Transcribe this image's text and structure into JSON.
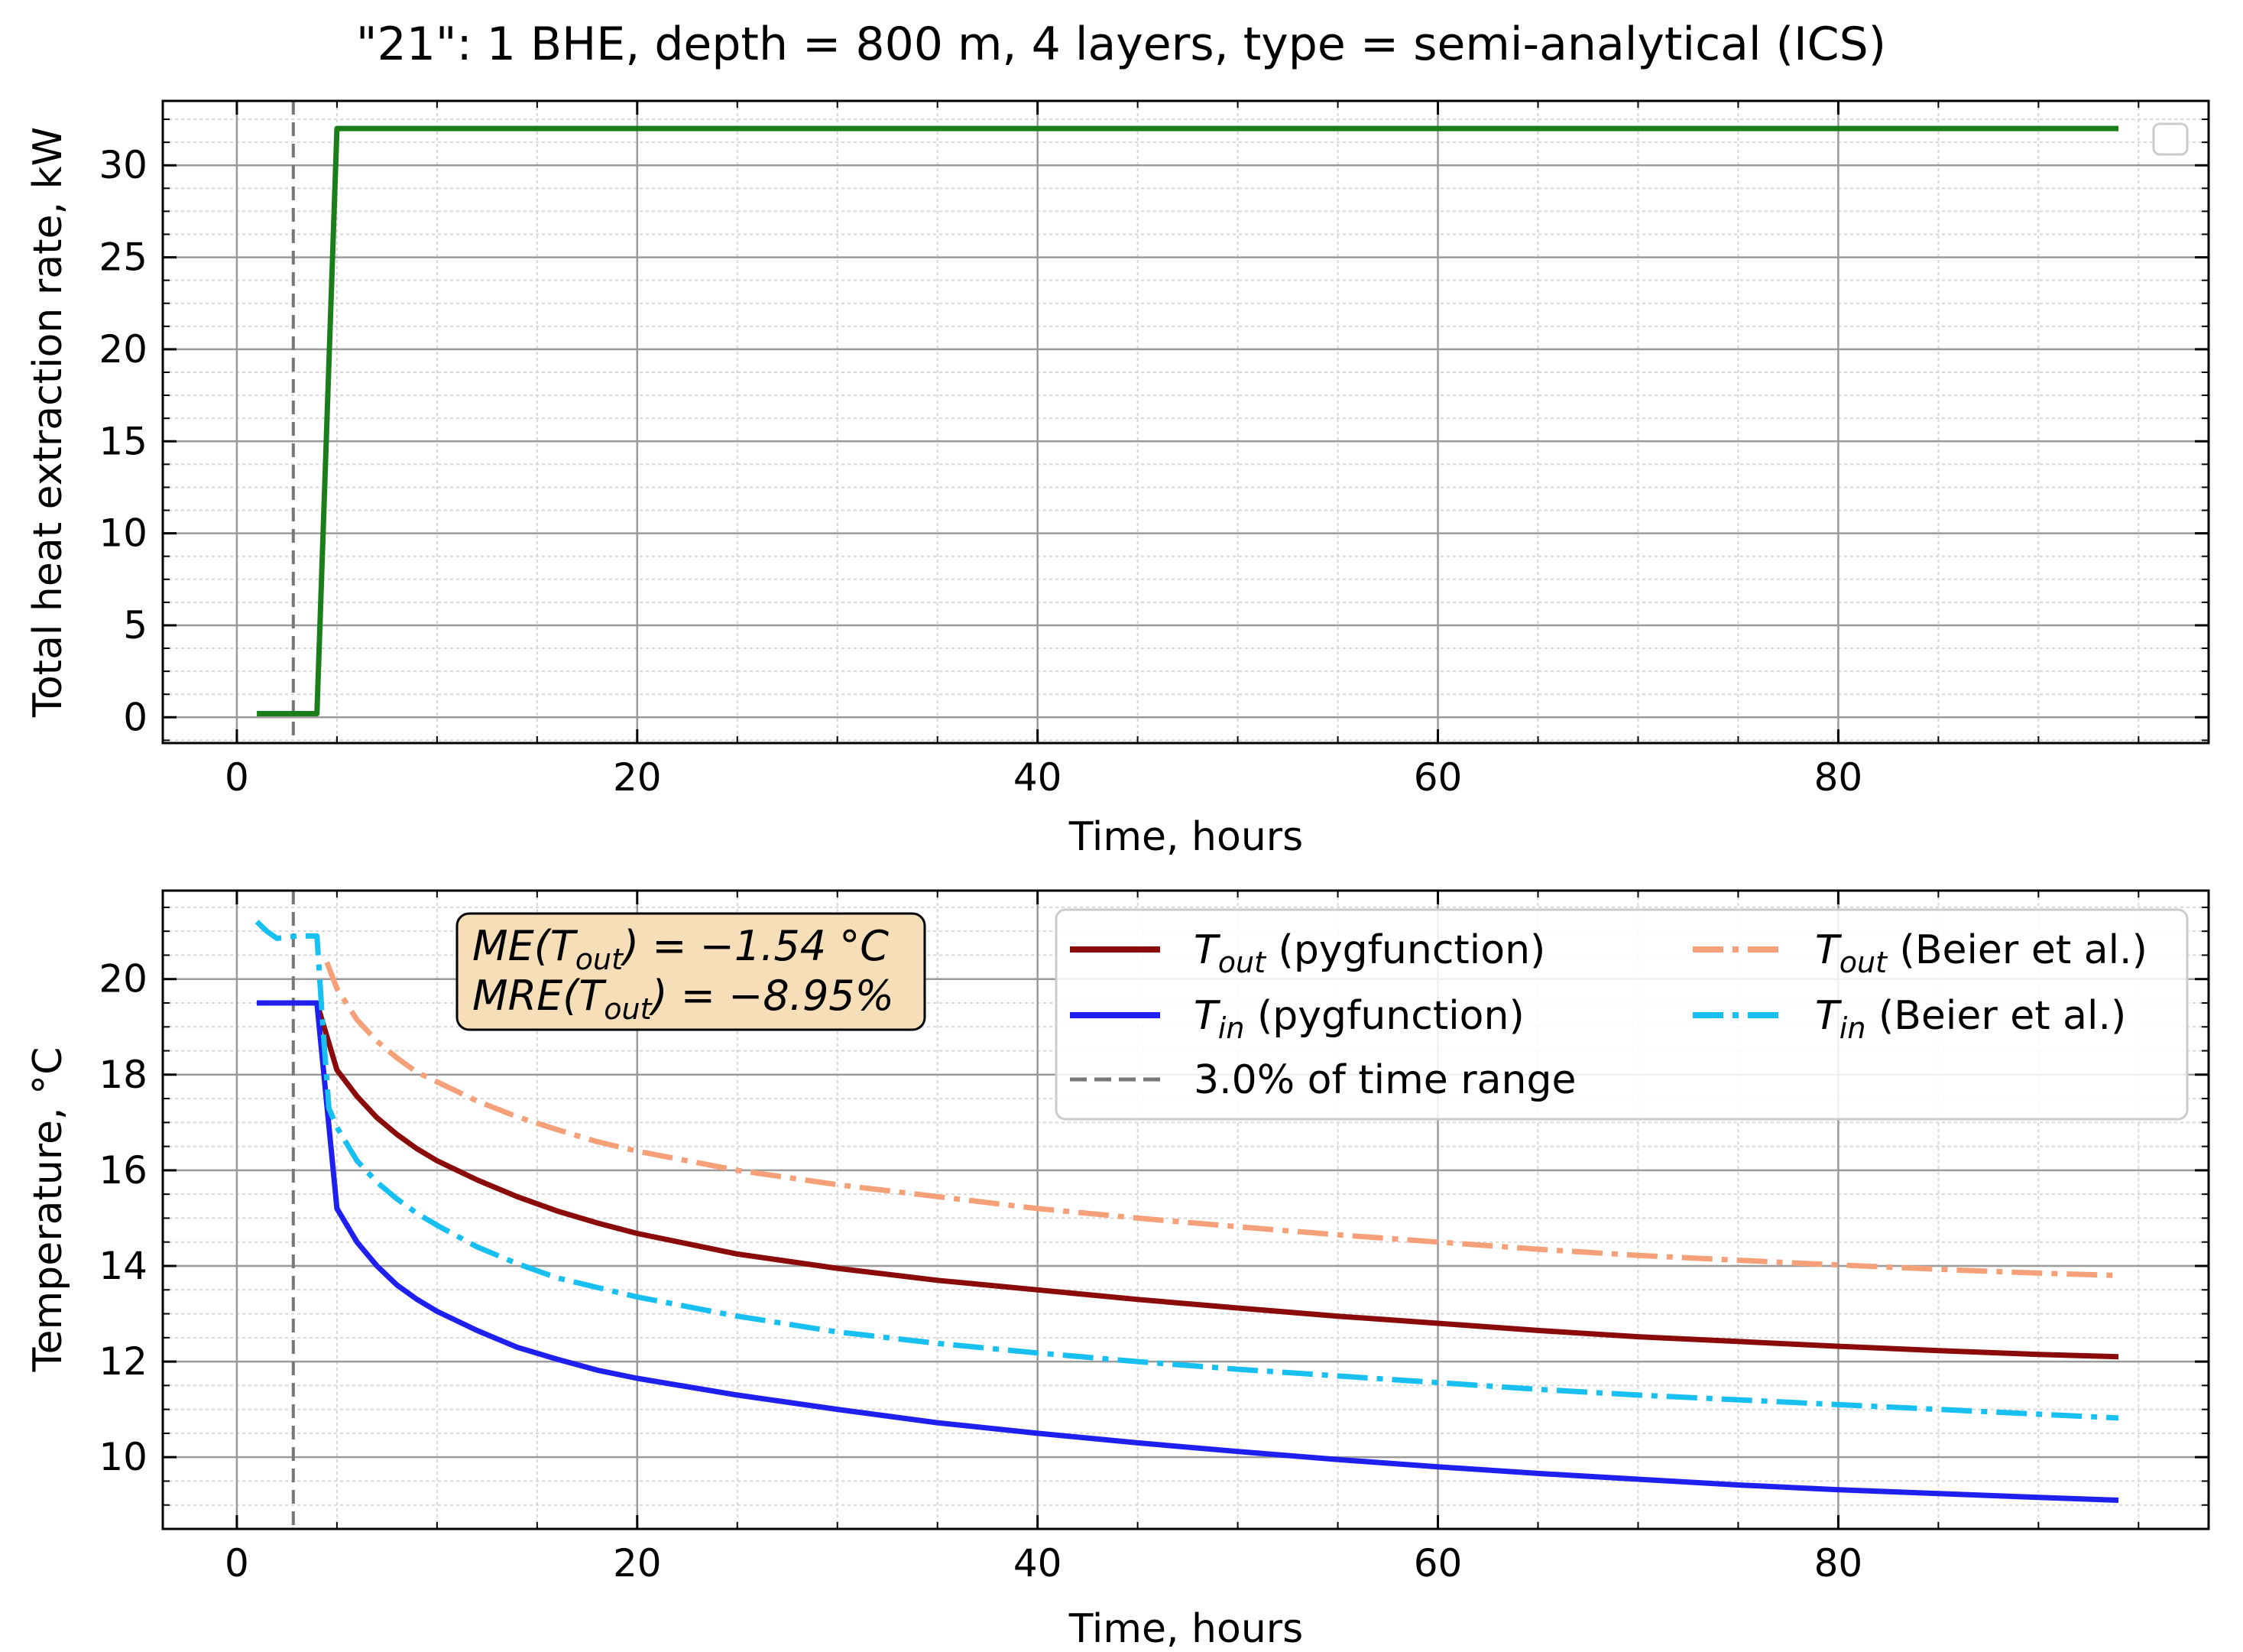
{
  "title": "\"21\": 1 BHE, depth = 800 m, 4 layers, type = semi-analytical (ICS)",
  "colors": {
    "heat_rate": "#1a7f1a",
    "tout_pyg": "#8b0b0b",
    "tin_pyg": "#1f1ff0",
    "tout_beier": "#f6a07a",
    "tin_beier": "#17c0f0",
    "vline": "#777777",
    "annotation_bg": "#f6deb8",
    "grid_major": "#9a9a9a",
    "grid_minor": "#d6d6d6"
  },
  "chart_data": [
    {
      "type": "line",
      "xlabel": "Time, hours",
      "ylabel": "Total heat extraction rate, kW",
      "xlim": [
        -3.7,
        98.5
      ],
      "ylim": [
        -1.4,
        33.5
      ],
      "xticks": [
        0,
        20,
        40,
        60,
        80
      ],
      "xtick_labels": [
        "0",
        "20",
        "40",
        "60",
        "80"
      ],
      "yticks": [
        0,
        5,
        10,
        15,
        20,
        25,
        30
      ],
      "ytick_labels": [
        "0",
        "5",
        "10",
        "15",
        "20",
        "25",
        "30"
      ],
      "grid": true,
      "legend": "top-right (empty)",
      "vline_x": 2.82,
      "series": [
        {
          "name": "",
          "x": [
            1,
            4,
            5,
            94
          ],
          "y": [
            0.2,
            0.2,
            32,
            32
          ]
        }
      ]
    },
    {
      "type": "line",
      "xlabel": "Time, hours",
      "ylabel": "Temperature, °C",
      "xlim": [
        -3.7,
        98.5
      ],
      "ylim": [
        8.5,
        21.85
      ],
      "xticks": [
        0,
        20,
        40,
        60,
        80
      ],
      "xtick_labels": [
        "0",
        "20",
        "40",
        "60",
        "80"
      ],
      "yticks": [
        10,
        12,
        14,
        16,
        18,
        20
      ],
      "ytick_labels": [
        "10",
        "12",
        "14",
        "16",
        "18",
        "20"
      ],
      "grid": true,
      "legend": "top-right",
      "vline_x": 2.82,
      "annotation": {
        "line1_pre": "ME(T",
        "line1_sub": "out",
        "line1_post": ") = −1.54 °C",
        "line2_pre": "MRE(T",
        "line2_sub": "out",
        "line2_post": ") = −8.95%"
      },
      "series": [
        {
          "name_main": "T",
          "name_sub": "out",
          "name_rest": " (pygfunction)",
          "style": "solid",
          "x": [
            1,
            4,
            5,
            6,
            7,
            8,
            9,
            10,
            12,
            14,
            16,
            18,
            20,
            25,
            30,
            35,
            40,
            45,
            50,
            55,
            60,
            65,
            70,
            75,
            80,
            85,
            90,
            94
          ],
          "y": [
            19.5,
            19.5,
            18.1,
            17.55,
            17.1,
            16.75,
            16.45,
            16.2,
            15.8,
            15.45,
            15.15,
            14.9,
            14.68,
            14.25,
            13.95,
            13.7,
            13.5,
            13.3,
            13.12,
            12.95,
            12.8,
            12.65,
            12.52,
            12.42,
            12.32,
            12.23,
            12.15,
            12.1
          ]
        },
        {
          "name_main": "T",
          "name_sub": "in",
          "name_rest": " (pygfunction)",
          "style": "solid",
          "x": [
            1,
            4,
            5,
            6,
            7,
            8,
            9,
            10,
            12,
            14,
            16,
            18,
            20,
            25,
            30,
            35,
            40,
            45,
            50,
            55,
            60,
            65,
            70,
            75,
            80,
            85,
            90,
            94
          ],
          "y": [
            19.5,
            19.5,
            15.2,
            14.5,
            14.0,
            13.6,
            13.3,
            13.05,
            12.65,
            12.3,
            12.05,
            11.82,
            11.65,
            11.3,
            11.0,
            10.72,
            10.5,
            10.3,
            10.12,
            9.95,
            9.8,
            9.66,
            9.54,
            9.42,
            9.32,
            9.24,
            9.16,
            9.1
          ]
        },
        {
          "name_main": "T",
          "name_sub": "out",
          "name_rest": " (Beier et al.)",
          "style": "dashdot",
          "x": [
            4.5,
            5,
            6,
            7,
            8,
            9,
            10,
            12,
            14,
            16,
            18,
            20,
            25,
            30,
            35,
            40,
            45,
            50,
            55,
            60,
            65,
            70,
            75,
            80,
            85,
            90,
            94
          ],
          "y": [
            20.35,
            19.8,
            19.15,
            18.7,
            18.35,
            18.05,
            17.85,
            17.45,
            17.12,
            16.85,
            16.6,
            16.4,
            16.0,
            15.7,
            15.45,
            15.2,
            15.0,
            14.82,
            14.65,
            14.5,
            14.35,
            14.22,
            14.12,
            14.02,
            13.93,
            13.85,
            13.8
          ]
        },
        {
          "name_main": "T",
          "name_sub": "in",
          "name_rest": " (Beier et al.)",
          "style": "dashdot",
          "x": [
            1,
            1.5,
            2,
            3,
            4,
            4.3,
            4.6,
            5,
            6,
            7,
            8,
            9,
            10,
            12,
            14,
            16,
            18,
            20,
            25,
            30,
            35,
            40,
            45,
            50,
            55,
            60,
            65,
            70,
            75,
            80,
            85,
            90,
            94
          ],
          "y": [
            21.2,
            21.0,
            20.85,
            20.9,
            20.9,
            19.0,
            17.3,
            16.9,
            16.2,
            15.75,
            15.4,
            15.1,
            14.85,
            14.4,
            14.05,
            13.75,
            13.55,
            13.35,
            12.95,
            12.62,
            12.38,
            12.18,
            12.0,
            11.84,
            11.7,
            11.56,
            11.42,
            11.3,
            11.2,
            11.1,
            11.0,
            10.9,
            10.82
          ]
        }
      ],
      "legend_vline_label": "3.0% of time range"
    }
  ]
}
